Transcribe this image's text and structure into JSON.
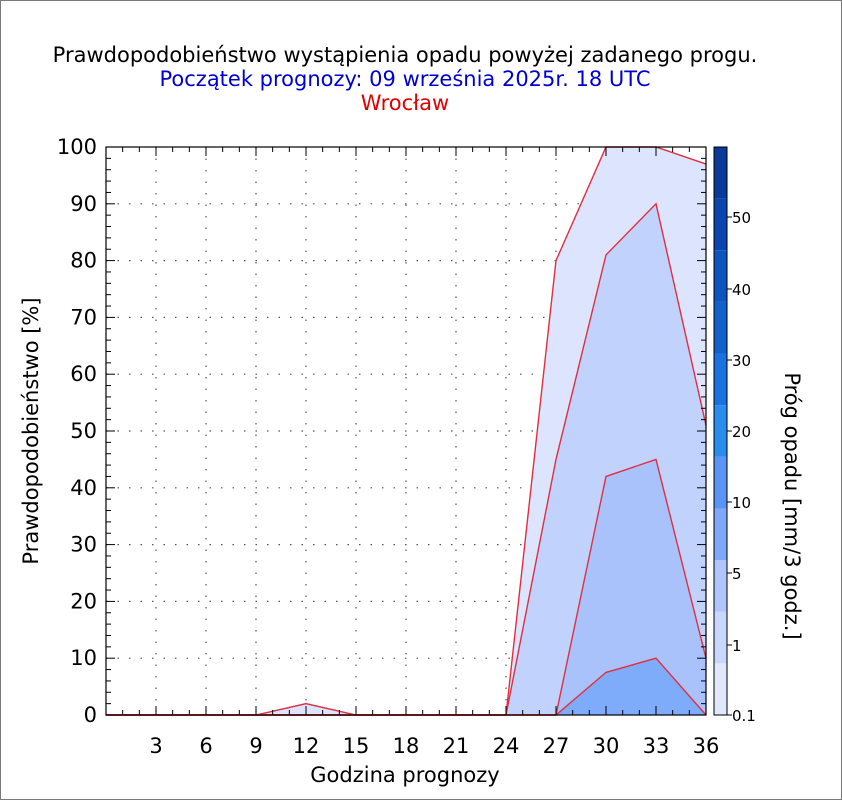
{
  "chart_data": {
    "type": "area",
    "title": "Prawdopodobieństwo wystąpienia opadu powyżej zadanego progu.",
    "subtitle": "Początek prognozy: 09 września 2025r. 18 UTC",
    "location": "Wrocław",
    "xlabel": "Godzina prognozy",
    "ylabel": "Prawdopodobieństwo [%]",
    "colorbar_label": "Próg opadu [mm/3 godz.]",
    "xlim": [
      0,
      36
    ],
    "ylim": [
      0,
      100
    ],
    "x_ticks": [
      "3",
      "6",
      "9",
      "12",
      "15",
      "18",
      "21",
      "24",
      "27",
      "30",
      "33",
      "36"
    ],
    "y_ticks": [
      "0",
      "10",
      "20",
      "30",
      "40",
      "50",
      "60",
      "70",
      "80",
      "90",
      "100"
    ],
    "x": [
      0,
      3,
      6,
      9,
      12,
      15,
      18,
      21,
      24,
      27,
      30,
      33,
      36
    ],
    "series": [
      {
        "name": "0.1",
        "values": [
          0,
          0,
          0,
          0,
          2,
          0,
          0,
          0,
          0,
          80,
          100,
          100,
          97
        ]
      },
      {
        "name": "1",
        "values": [
          0,
          0,
          0,
          0,
          0,
          0,
          0,
          0,
          0,
          45,
          81,
          90,
          51
        ]
      },
      {
        "name": "5",
        "values": [
          0,
          0,
          0,
          0,
          0,
          0,
          0,
          0,
          0,
          0,
          42,
          45,
          10
        ]
      },
      {
        "name": "10",
        "values": [
          0,
          0,
          0,
          0,
          0,
          0,
          0,
          0,
          0,
          0,
          7.5,
          10,
          0
        ]
      }
    ],
    "colorbar_ticks": [
      "0.1",
      "1",
      "5",
      "10",
      "20",
      "30",
      "40",
      "50"
    ],
    "colorbar_colors": [
      "#e1e8fe",
      "#c9d6fd",
      "#b0c5fc",
      "#7fa8fb",
      "#5a94f5",
      "#2a8cee",
      "#1a71e0",
      "#1260cc",
      "#0e54c0",
      "#0a45b0",
      "#083a9a"
    ],
    "colors": {
      "title": "#000000",
      "subtitle": "#0000d0",
      "location": "#e00000",
      "line": "#e03040",
      "fills": [
        "#dce4fe",
        "#c1d2fd",
        "#a9c2fc",
        "#7fabfb"
      ]
    },
    "grid": true
  }
}
